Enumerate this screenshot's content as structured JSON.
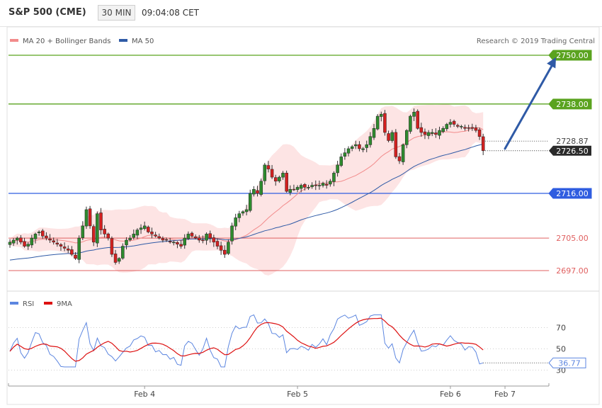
{
  "header": {
    "instrument": "S&P 500 (CME)",
    "timeframe": "30 MIN",
    "time": "09:04:08 CET"
  },
  "legend": {
    "bollinger_label": "MA 20 + Bollinger Bands",
    "ma50_label": "MA 50",
    "credit": "Research © 2019 Trading Central",
    "rsi_label": "RSI",
    "ma9_label": "9MA"
  },
  "colors": {
    "bull": "#2e8b2e",
    "bear": "#d42020",
    "band_fill": "#fde1e1",
    "ma20": "#f28b8b",
    "ma50": "#2f5aa6",
    "resistance": "#5aa31f",
    "support_blue": "#2f5de0",
    "support_red": "#e06060",
    "arrow": "#2f5aa6",
    "rsi": "#5c86e0",
    "rsi_ma": "#dd1111"
  },
  "chart_data": [
    {
      "type": "candlestick",
      "ylim": [
        2694,
        2754
      ],
      "x_tick_labels": [
        "Feb 4",
        "Feb 5",
        "Feb 6",
        "Feb 7"
      ],
      "x_tick_index": [
        37,
        79,
        121,
        136
      ],
      "price_levels": [
        {
          "value": 2750.0,
          "label": "2750.00",
          "kind": "resistance"
        },
        {
          "value": 2738.0,
          "label": "2738.00",
          "kind": "resistance"
        },
        {
          "value": 2716.0,
          "label": "2716.00",
          "kind": "support_blue"
        },
        {
          "value": 2705.0,
          "label": "2705.00",
          "kind": "support_red"
        },
        {
          "value": 2697.0,
          "label": "2697.00",
          "kind": "support_red"
        }
      ],
      "last_price": {
        "value": 2726.5,
        "label": "2726.50"
      },
      "ma50_last": {
        "value": 2728.87,
        "label": "2728.87"
      },
      "forecast_arrow": {
        "from_index": 136,
        "from_value": 2727,
        "to_index": 150,
        "to_value": 2749.5
      },
      "ohlc_anchor_closes": [
        2704,
        2704.5,
        2705,
        2704,
        2703,
        2703.5,
        2705,
        2706,
        2706.5,
        2705.5,
        2705,
        2704.5,
        2704,
        2703.5,
        2703,
        2702.5,
        2702,
        2701,
        2700,
        2705,
        2708,
        2712,
        2708,
        2704,
        2711,
        2707,
        2706,
        2705,
        2701,
        2699,
        2700,
        2703,
        2704.5,
        2705,
        2706,
        2707,
        2707.5,
        2708,
        2706.5,
        2706,
        2705.5,
        2705,
        2704.5,
        2704.5,
        2704,
        2704,
        2703.5,
        2703,
        2705,
        2706,
        2705.5,
        2705,
        2704.5,
        2704.5,
        2706,
        2705,
        2704,
        2703,
        2702,
        2701,
        2704,
        2708,
        2710,
        2711,
        2711.5,
        2712,
        2716,
        2717,
        2716,
        2719,
        2723,
        2722,
        2720,
        2719,
        2720,
        2721,
        2716.5,
        2717,
        2717,
        2717.5,
        2718,
        2717.5,
        2717.5,
        2718,
        2718,
        2718,
        2718.5,
        2718,
        2719,
        2721,
        2723,
        2725,
        2726,
        2727,
        2727.5,
        2728,
        2727,
        2727,
        2728,
        2730,
        2732,
        2735,
        2735.5,
        2731,
        2729,
        2731,
        2725,
        2724,
        2728,
        2731.5,
        2735,
        2736,
        2732,
        2731,
        2730.5,
        2731,
        2731,
        2730.5,
        2731.5,
        2732,
        2733,
        2733.5,
        2733,
        2732.5,
        2732.5,
        2732,
        2732,
        2732,
        2731.5,
        2730,
        2726.5
      ],
      "rsi": {
        "labels": [
          "70",
          "50",
          "30"
        ],
        "levels": [
          70,
          50,
          30
        ],
        "ylim": [
          25,
          85
        ],
        "last_value": 36.77,
        "last_label": "36.77"
      }
    }
  ]
}
